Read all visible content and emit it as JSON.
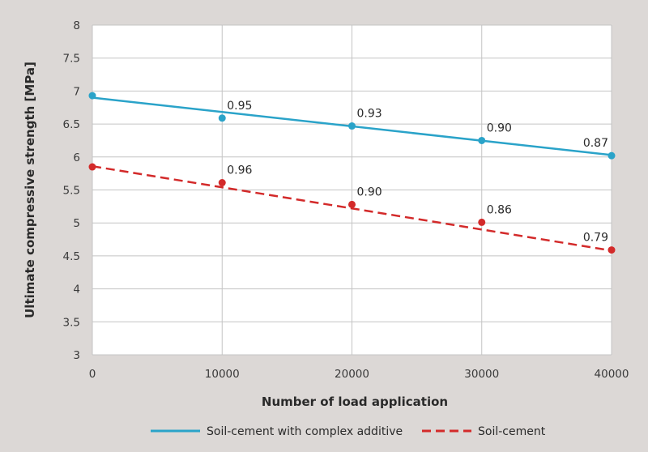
{
  "chart_data": {
    "type": "line",
    "title": "",
    "xlabel": "Number of load application",
    "ylabel": "Ultimate compressive strength [MPa]",
    "x": [
      0,
      10000,
      20000,
      30000,
      40000
    ],
    "xlim": [
      0,
      40000
    ],
    "ylim": [
      3,
      8
    ],
    "x_ticks": [
      "0",
      "10000",
      "20000",
      "30000",
      "40000"
    ],
    "y_ticks": [
      "3",
      "3.5",
      "4",
      "4.5",
      "5",
      "5.5",
      "6",
      "6.5",
      "7",
      "7.5",
      "8"
    ],
    "grid": true,
    "legend_position": "bottom",
    "series": [
      {
        "name": "Soil-cement with complex additive",
        "color": "#2aa3c9",
        "line_style": "solid",
        "values": [
          6.93,
          6.59,
          6.47,
          6.25,
          6.02
        ],
        "point_labels": [
          "",
          "0.95",
          "0.93",
          "0.90",
          "0.87"
        ],
        "trendline": [
          6.9,
          6.03
        ]
      },
      {
        "name": "Soil-cement",
        "color": "#d32a2a",
        "line_style": "dashed",
        "values": [
          5.85,
          5.61,
          5.28,
          5.01,
          4.59
        ],
        "point_labels": [
          "",
          "0.96",
          "0.90",
          "0.86",
          "0.79"
        ],
        "trendline": [
          5.86,
          4.58
        ]
      }
    ]
  }
}
